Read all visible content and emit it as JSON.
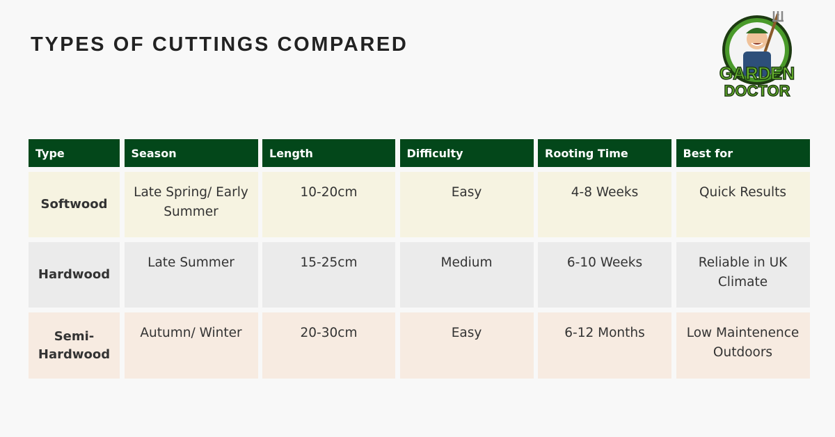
{
  "header": {
    "title": "TYPES OF CUTTINGS COMPARED",
    "logo": {
      "line1": "GARDEN",
      "line2": "DOCTOR"
    }
  },
  "table": {
    "columns": [
      "Type",
      "Season",
      "Length",
      "Difficulty",
      "Rooting Time",
      "Best for"
    ],
    "rows": [
      [
        "Softwood",
        "Late Spring/ Early Summer",
        "10-20cm",
        "Easy",
        "4-8 Weeks",
        "Quick Results"
      ],
      [
        "Hardwood",
        "Late Summer",
        "15-25cm",
        "Medium",
        "6-10 Weeks",
        "Reliable in UK Climate"
      ],
      [
        "Semi-Hardwood",
        "Autumn/ Winter",
        "20-30cm",
        "Easy",
        "6-12 Months",
        "Low Maintenence Outdoors"
      ]
    ]
  }
}
